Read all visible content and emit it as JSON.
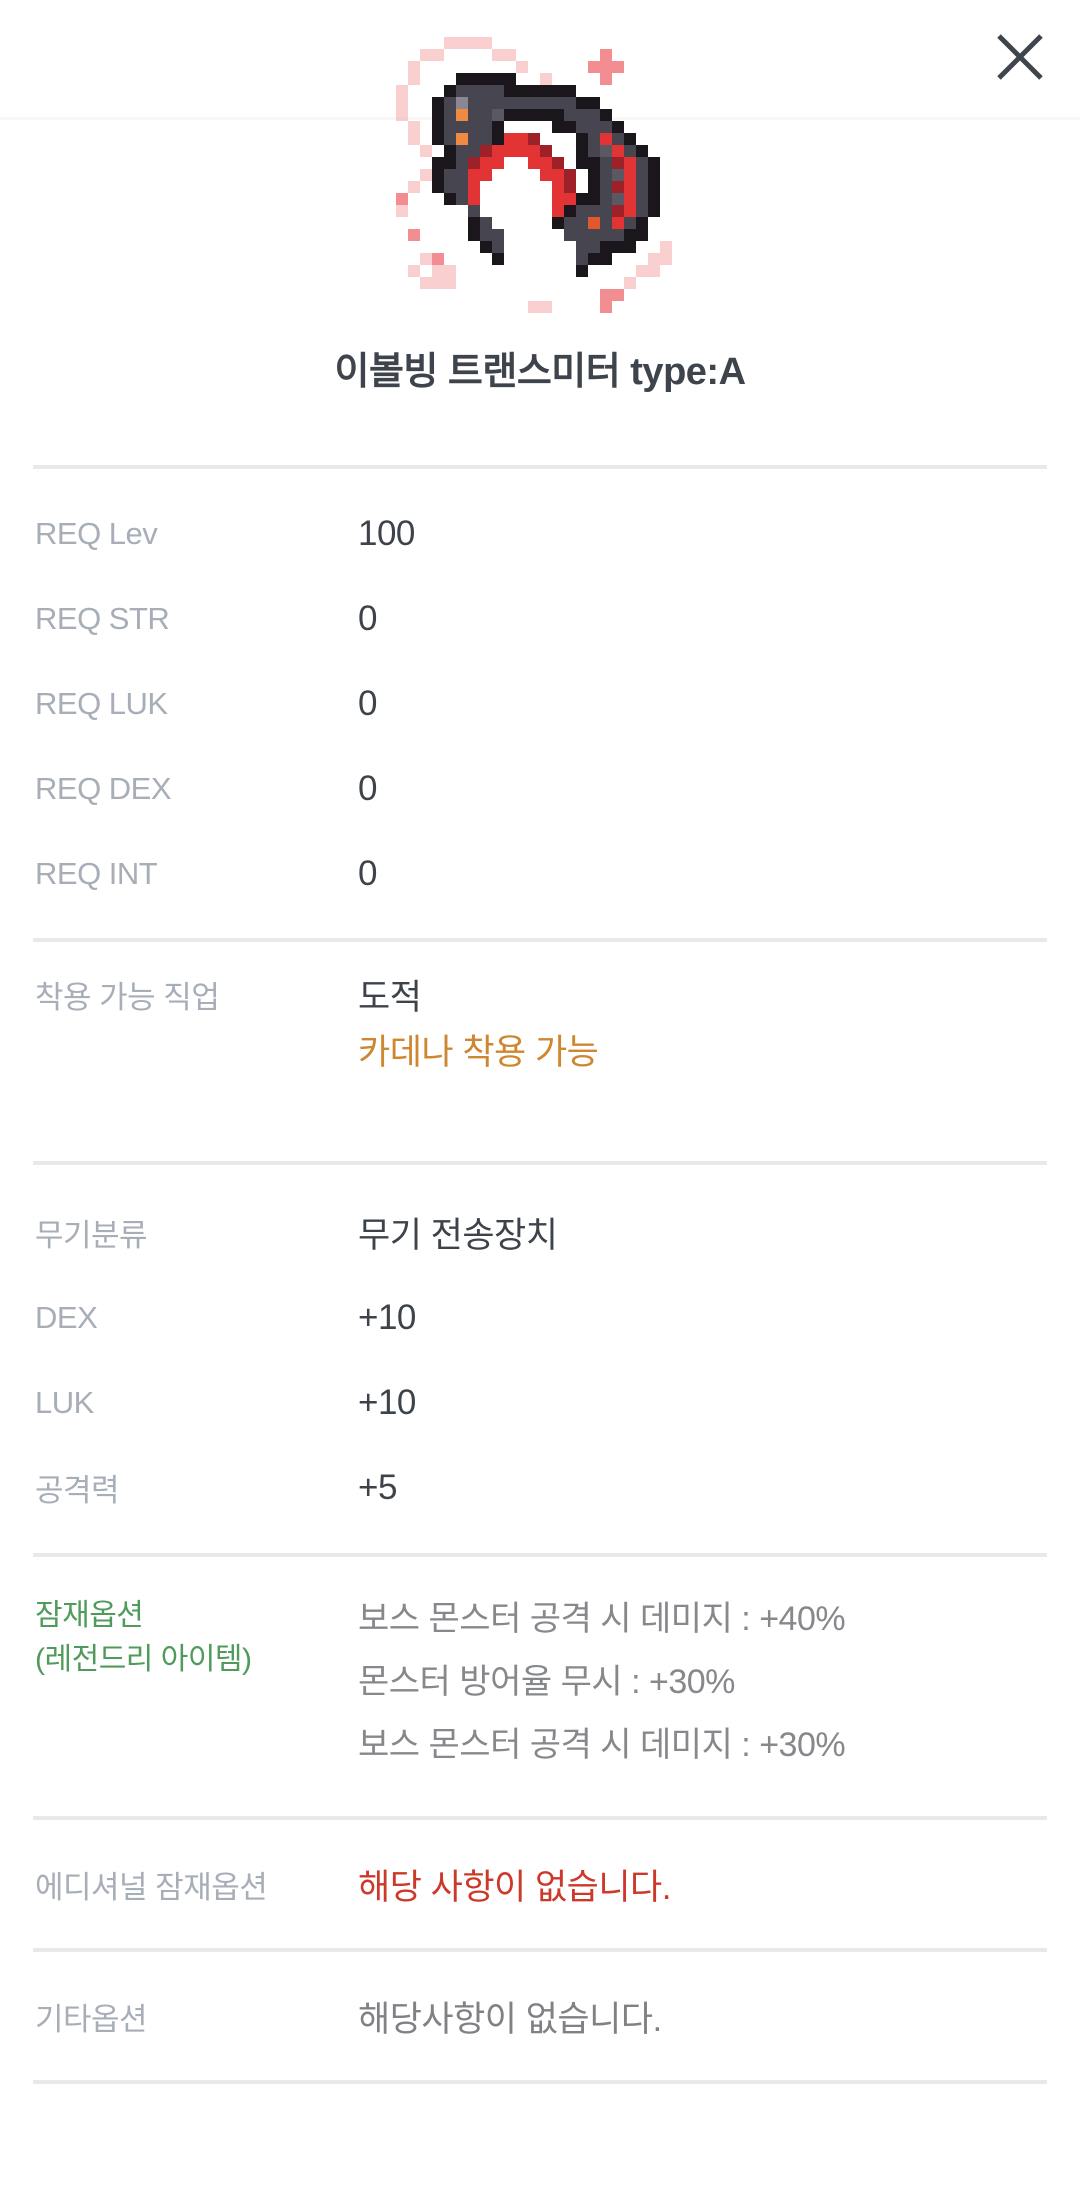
{
  "header": {
    "close_icon": "close-x"
  },
  "item": {
    "title": "이볼빙 트랜스미터 type:A"
  },
  "stats": {
    "req": [
      {
        "label": "REQ Lev",
        "value": "100"
      },
      {
        "label": "REQ STR",
        "value": "0"
      },
      {
        "label": "REQ LUK",
        "value": "0"
      },
      {
        "label": "REQ DEX",
        "value": "0"
      },
      {
        "label": "REQ INT",
        "value": "0"
      }
    ],
    "job": {
      "label": "착용 가능 직업",
      "class_value": "도적",
      "cadena_note": "카데나 착용 가능"
    },
    "weapon": [
      {
        "label": "무기분류",
        "value": "무기 전송장치"
      },
      {
        "label": "DEX",
        "value": "+10"
      },
      {
        "label": "LUK",
        "value": "+10"
      },
      {
        "label": "공격력",
        "value": "+5"
      }
    ],
    "potential": {
      "label": "잠재옵션",
      "sublabel": "(레전드리 아이템)",
      "options": [
        "보스 몬스터 공격 시 데미지 : +40%",
        "몬스터 방어율 무시 : +30%",
        "보스 몬스터 공격 시 데미지 : +30%"
      ]
    },
    "additional": {
      "label": "에디셔널 잠재옵션",
      "value": "해당 사항이 없습니다."
    },
    "etc": {
      "label": "기타옵션",
      "value": "해당사항이 없습니다."
    }
  },
  "colors": {
    "title_text": "#3e444c",
    "label_gray": "#a7aeb8",
    "value_dark": "#3d434a",
    "potential_green": "#4f9b5b",
    "potential_text_gray": "#86888b",
    "cadena_orange": "#ce8730",
    "none_red": "#cc392a",
    "etc_gray": "#7f8184",
    "divider": "#e9e9e9"
  }
}
